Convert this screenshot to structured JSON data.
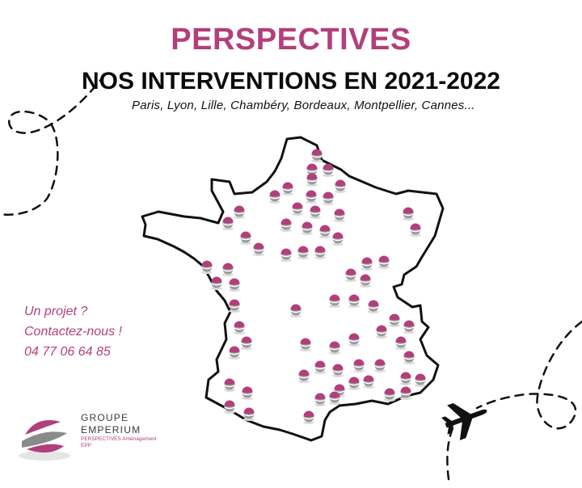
{
  "header": {
    "brand_title": "PERSPECTIVES",
    "subtitle": "NOS INTERVENTIONS EN 2021-2022",
    "cities": "Paris, Lyon, Lille, Chambéry, Bordeaux, Montpellier, Cannes..."
  },
  "contact": {
    "line1": "Un projet ?",
    "line2": "Contactez-nous !",
    "phone": "04 77 06 64 85"
  },
  "logo": {
    "line1": "GROUPE",
    "line2": "EMPERIUM",
    "line3": "PERSPECTIVES Aménagement",
    "line4": "EPP"
  },
  "colors": {
    "accent": "#b23f7c",
    "text": "#0b0b0b",
    "marker_top": "#b23f7c",
    "marker_bottom": "#9b9b9b"
  },
  "icons": [
    "airplane-icon",
    "map-marker-icon",
    "logo-icon"
  ]
}
